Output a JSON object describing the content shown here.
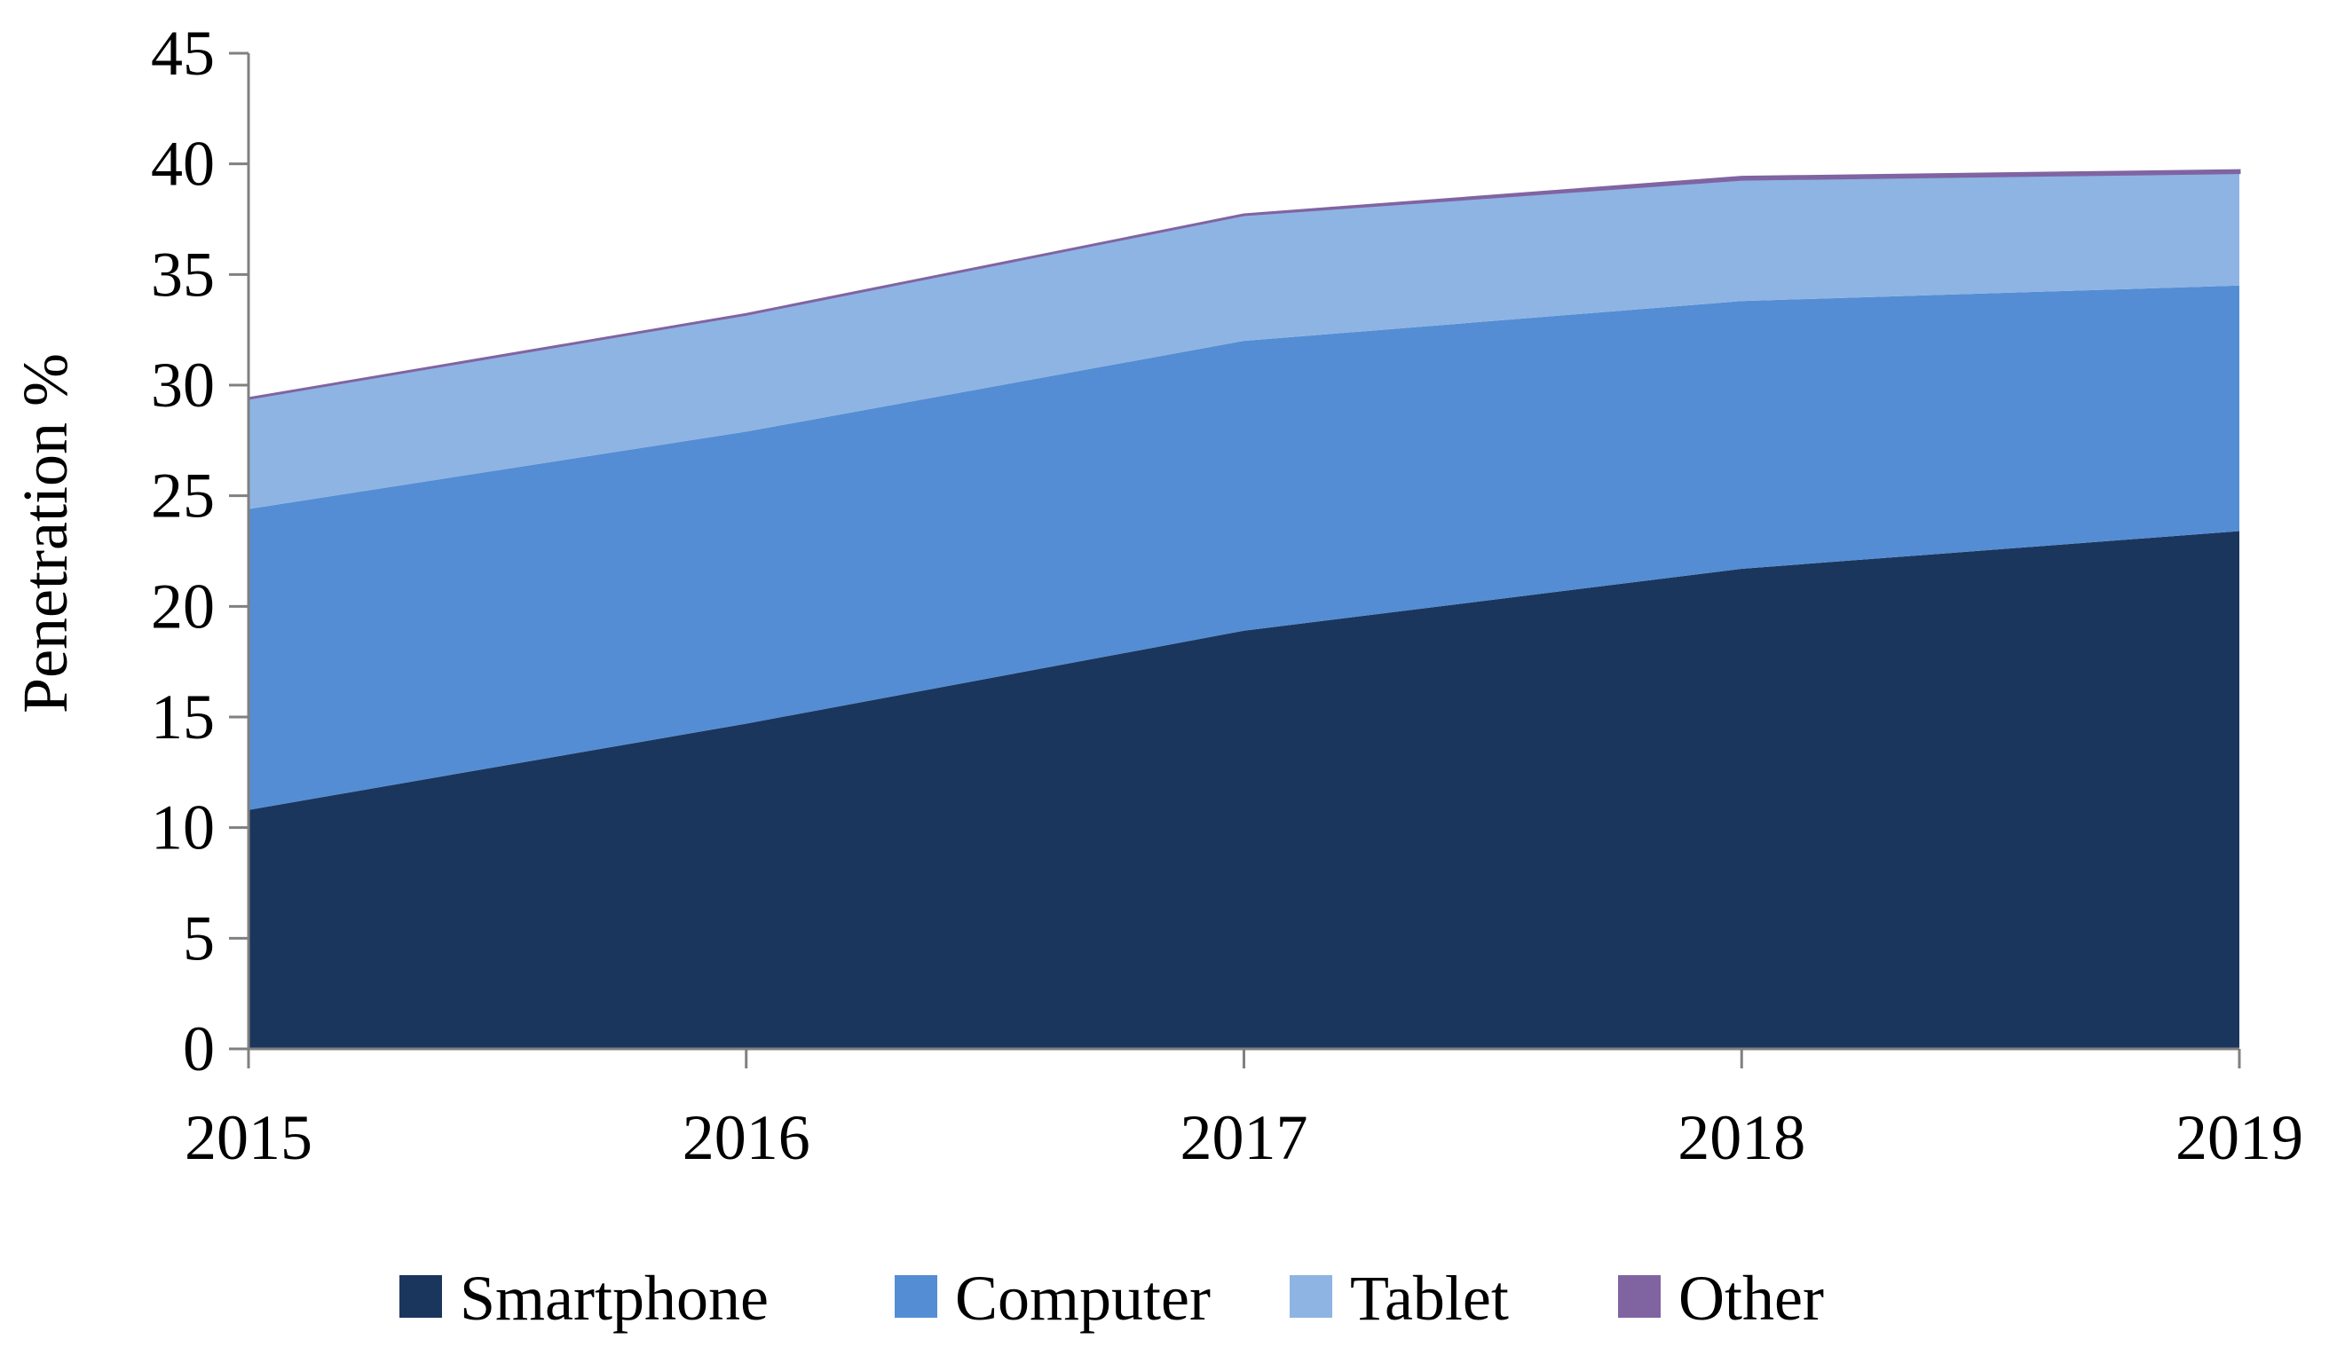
{
  "chart_data": {
    "type": "area",
    "stacked": true,
    "x": [
      "2015",
      "2016",
      "2017",
      "2018",
      "2019"
    ],
    "series": [
      {
        "name": "Smartphone",
        "color": "#1b365d",
        "values": [
          10.8,
          14.7,
          18.9,
          21.7,
          23.4
        ]
      },
      {
        "name": "Computer",
        "color": "#548dd4",
        "values": [
          13.6,
          13.2,
          13.1,
          12.1,
          11.1
        ]
      },
      {
        "name": "Tablet",
        "color": "#8eb4e3",
        "values": [
          5.0,
          5.3,
          5.7,
          5.5,
          5.1
        ]
      },
      {
        "name": "Other",
        "color": "#8064a2",
        "values": [
          0.0,
          0.0,
          0.0,
          0.1,
          0.1
        ]
      }
    ],
    "ylabel": "Penetration %",
    "xlabel": "",
    "ylim": [
      0,
      45
    ],
    "yticks": [
      "0",
      "5",
      "10",
      "15",
      "20",
      "25",
      "30",
      "35",
      "40",
      "45"
    ],
    "grid": false,
    "legend_position": "bottom"
  }
}
